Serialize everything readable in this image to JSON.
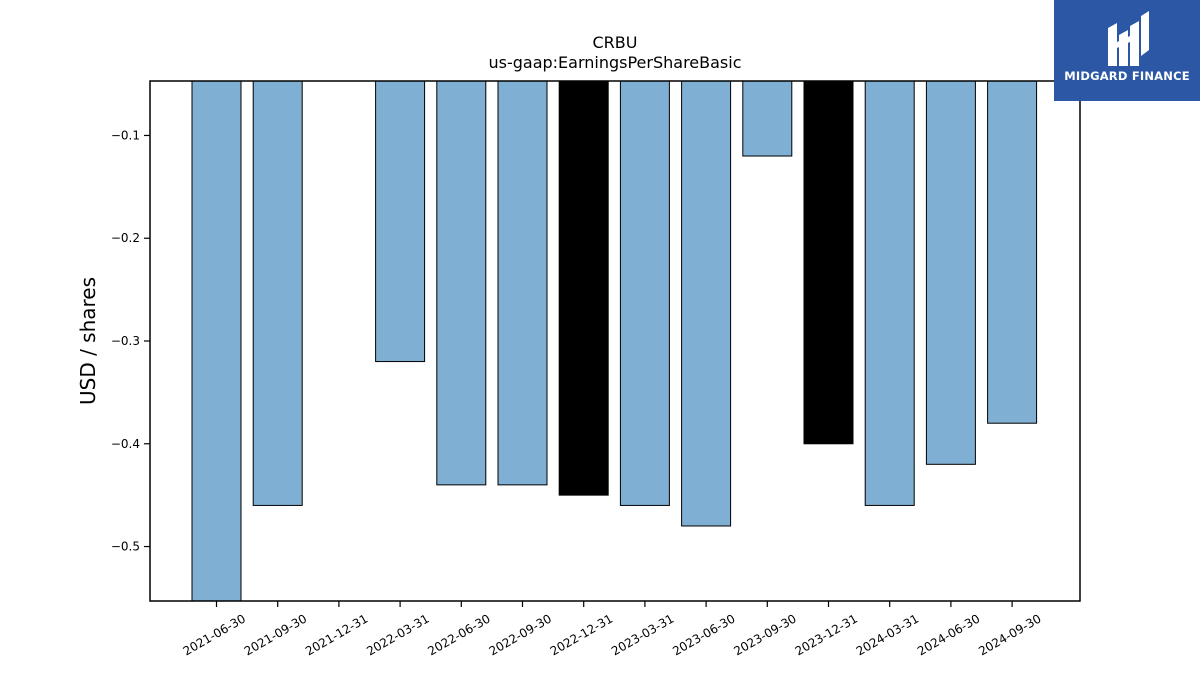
{
  "chart_data": {
    "type": "bar",
    "title": "CRBU",
    "subtitle": "us-gaap:EarningsPerShareBasic",
    "xlabel": "",
    "ylabel": "USD / shares",
    "categories": [
      "2021-06-30",
      "2021-09-30",
      "2021-12-31",
      "2022-03-31",
      "2022-06-30",
      "2022-09-30",
      "2022-12-31",
      "2023-03-31",
      "2023-06-30",
      "2023-09-30",
      "2023-12-31",
      "2024-03-31",
      "2024-06-30",
      "2024-09-30"
    ],
    "values": [
      -0.56,
      -0.46,
      null,
      -0.32,
      -0.44,
      -0.44,
      -0.45,
      -0.46,
      -0.48,
      -0.12,
      -0.4,
      -0.46,
      -0.42,
      -0.38
    ],
    "highlight": [
      false,
      false,
      false,
      false,
      false,
      false,
      true,
      false,
      false,
      false,
      true,
      false,
      false,
      false
    ],
    "ylim": [
      -0.553,
      -0.047
    ],
    "yticks": [
      -0.1,
      -0.2,
      -0.3,
      -0.4,
      -0.5
    ],
    "ytick_labels": [
      "−0.1",
      "−0.2",
      "−0.3",
      "−0.4",
      "−0.5"
    ],
    "grid": false,
    "legend": "none",
    "colors": {
      "bar": "#7fafd3",
      "highlight": "#000000",
      "edge": "#000000"
    }
  },
  "logo": {
    "text": "MIDGARD FINANCE",
    "icon": "midgard-logo-icon",
    "background": "#2b57a5"
  }
}
